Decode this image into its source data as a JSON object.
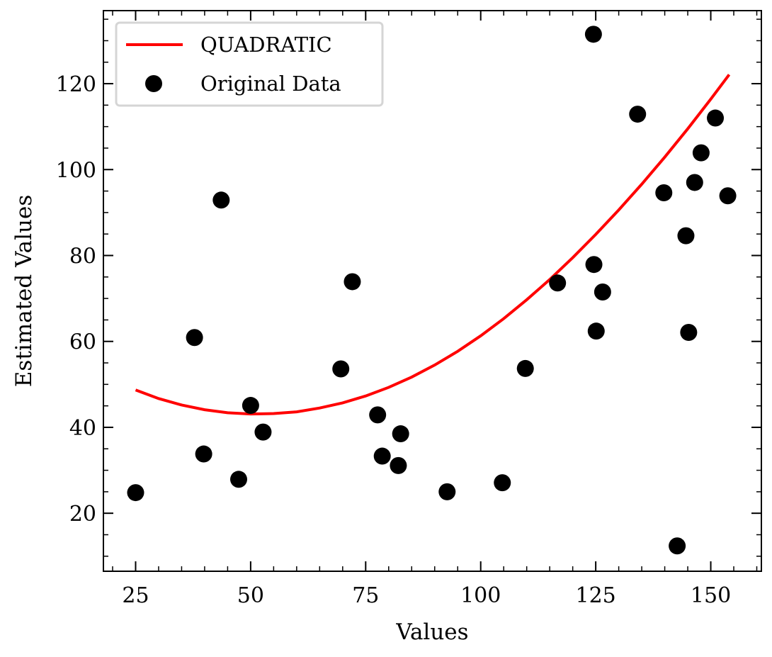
{
  "chart_data": {
    "type": "scatter",
    "title": "",
    "xlabel": "Values",
    "ylabel": "Estimated Values",
    "xlim": [
      18,
      161
    ],
    "ylim": [
      6.5,
      137
    ],
    "xticks": [
      25,
      50,
      75,
      100,
      125,
      150
    ],
    "yticks": [
      20,
      40,
      60,
      80,
      100,
      120
    ],
    "grid": false,
    "legend_position": "top-left",
    "series": [
      {
        "name": "QUADRATIC",
        "kind": "line",
        "color": "#ff0000",
        "x": [
          25,
          30,
          35,
          40,
          45,
          50,
          55,
          60,
          65,
          70,
          75,
          80,
          85,
          90,
          95,
          100,
          105,
          110,
          115,
          120,
          125,
          130,
          135,
          140,
          145,
          150,
          154
        ],
        "y": [
          48.7,
          46.7,
          45.2,
          44.1,
          43.4,
          43.1,
          43.2,
          43.6,
          44.5,
          45.7,
          47.3,
          49.3,
          51.7,
          54.5,
          57.7,
          61.3,
          65.3,
          69.7,
          74.4,
          79.5,
          84.9,
          90.6,
          96.6,
          102.9,
          109.5,
          116.4,
          122.1
        ]
      },
      {
        "name": "Original Data",
        "kind": "scatter",
        "color": "#000000",
        "x": [
          25,
          37.8,
          39.8,
          43.6,
          47.4,
          50,
          52.7,
          69.6,
          72.1,
          77.6,
          78.6,
          82.1,
          82.6,
          92.7,
          104.7,
          109.7,
          116.7,
          124.5,
          124.6,
          125.1,
          126.5,
          134.1,
          139.8,
          142.7,
          144.6,
          145.2,
          146.5,
          147.9,
          151,
          153.7
        ],
        "y": [
          24.8,
          60.9,
          33.8,
          92.9,
          27.9,
          45.1,
          38.9,
          53.6,
          73.9,
          42.9,
          33.3,
          31.1,
          38.5,
          25,
          27.1,
          53.7,
          73.6,
          131.5,
          77.9,
          62.4,
          71.5,
          112.9,
          94.6,
          12.4,
          84.6,
          62.1,
          97,
          103.9,
          112,
          93.9
        ]
      }
    ]
  }
}
